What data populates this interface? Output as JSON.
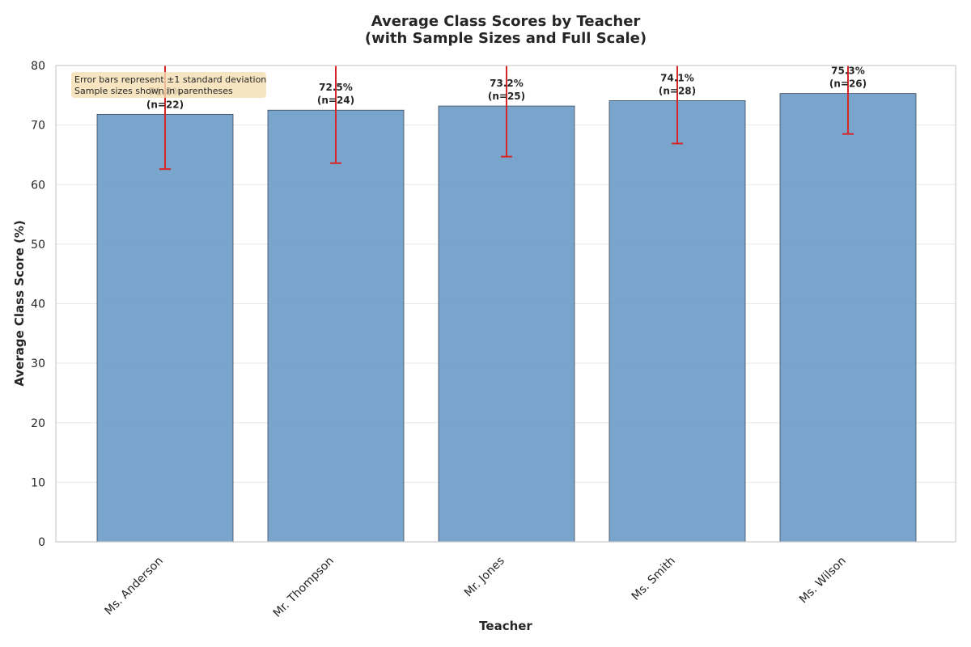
{
  "chart_data": {
    "type": "bar",
    "title_line1": "Average Class Scores by Teacher",
    "title_line2": "(with Sample Sizes and Full Scale)",
    "xlabel": "Teacher",
    "ylabel": "Average Class Score (%)",
    "ylim": [
      0,
      80
    ],
    "yticks": [
      0,
      10,
      20,
      30,
      40,
      50,
      60,
      70,
      80
    ],
    "categories": [
      "Ms. Anderson",
      "Mr. Thompson",
      "Mr. Jones",
      "Ms. Smith",
      "Ms. Wilson"
    ],
    "values": [
      71.8,
      72.5,
      73.2,
      74.1,
      75.3
    ],
    "error_sd": [
      9.2,
      8.9,
      8.5,
      7.2,
      6.8
    ],
    "sample_sizes": [
      22,
      24,
      25,
      28,
      26
    ],
    "value_labels": [
      "71.8%",
      "72.5%",
      "73.2%",
      "74.1%",
      "75.3%"
    ],
    "n_labels": [
      "(n=22)",
      "(n=24)",
      "(n=25)",
      "(n=28)",
      "(n=26)"
    ],
    "annotation_line1": "Error bars represent ±1 standard deviation",
    "annotation_line2": "Sample sizes shown in parentheses",
    "grid": true,
    "colors": {
      "bar_fill": "#6a9bc8",
      "bar_edge": "#3a4a5a",
      "error_bar": "#d62728",
      "annotation_bg": "#f5deb3",
      "grid": "#e8e8e8",
      "axes_edge": "#cccccc"
    }
  }
}
